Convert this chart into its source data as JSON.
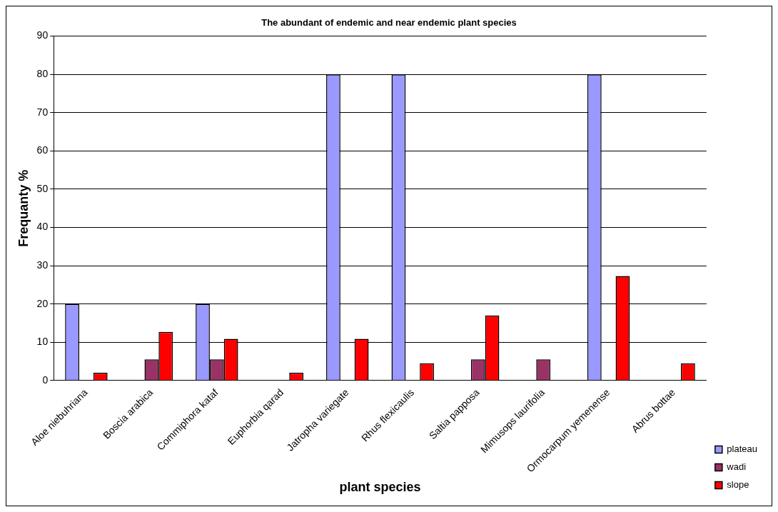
{
  "chart_data": {
    "type": "bar",
    "title": "The abundant of endemic and near endemic plant species",
    "xlabel": "plant species",
    "ylabel": "Frequanty %",
    "categories": [
      "Aloe niebuhriana",
      "Boscia arabica",
      "Commiphora kataf",
      "Euphorbia qarad",
      "Jatropha variegate",
      "Rhus flexicaulis",
      "Saltia papposa",
      "Mimusops laurifolia",
      "Ormocarpum yemenense",
      "Abrus bottae"
    ],
    "series": [
      {
        "name": "plateau",
        "color": "#9999ff",
        "values": [
          20,
          null,
          20,
          null,
          80,
          80,
          null,
          null,
          80,
          null
        ]
      },
      {
        "name": "wadi",
        "color": "#993366",
        "values": [
          null,
          5.5,
          5.5,
          null,
          null,
          null,
          5.5,
          5.5,
          null,
          null
        ]
      },
      {
        "name": "slope",
        "color": "#ff0000",
        "values": [
          2,
          12.7,
          10.9,
          2,
          10.9,
          4.5,
          17,
          null,
          27.3,
          4.5
        ]
      }
    ],
    "ylim": [
      0,
      90
    ],
    "yticks": [
      0,
      10,
      20,
      30,
      40,
      50,
      60,
      70,
      80,
      90
    ],
    "grid": "y",
    "legend": "bottom right"
  }
}
